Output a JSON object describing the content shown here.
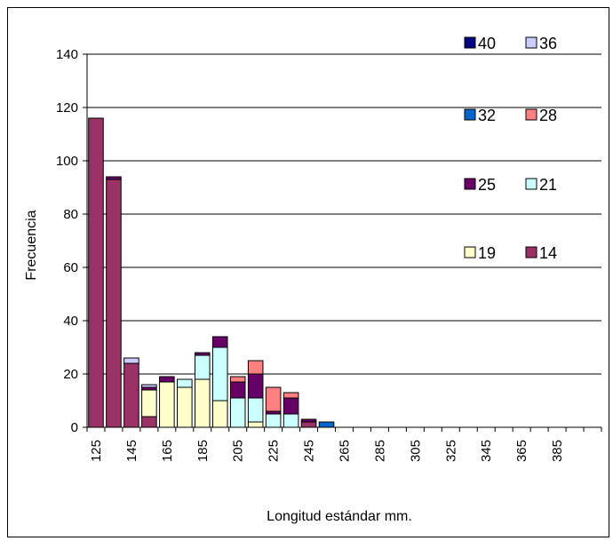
{
  "chart_data": {
    "type": "bar",
    "stacked": true,
    "title": "",
    "xlabel": "Longitud estándar mm.",
    "ylabel": "Frecuencia",
    "ylim": [
      0,
      140
    ],
    "yticks": [
      "0",
      "20",
      "40",
      "60",
      "80",
      "100",
      "120",
      "140"
    ],
    "ytick_values": [
      0,
      20,
      40,
      60,
      80,
      100,
      120,
      140
    ],
    "grid": true,
    "legend_position": "top-right",
    "x_tick_labels": [
      "125",
      "145",
      "165",
      "185",
      "205",
      "225",
      "245",
      "265",
      "285",
      "305",
      "325",
      "345",
      "365",
      "385"
    ],
    "categories": [
      "125",
      "135",
      "145",
      "155",
      "165",
      "175",
      "185",
      "195",
      "205",
      "215",
      "225",
      "235",
      "245",
      "255",
      "265",
      "275",
      "285",
      "295",
      "305",
      "315",
      "325",
      "335",
      "345",
      "355",
      "365",
      "375",
      "385",
      "395"
    ],
    "series": [
      {
        "name": "14",
        "color": "#993366",
        "values": [
          116,
          93,
          24,
          4,
          0,
          0,
          0,
          0,
          0,
          0,
          0,
          0,
          2,
          0,
          0,
          0,
          0,
          0,
          0,
          0,
          0,
          0,
          0,
          0,
          0,
          0,
          0,
          0
        ]
      },
      {
        "name": "19",
        "color": "#FFFFCC",
        "values": [
          0,
          0,
          0,
          10,
          17,
          15,
          18,
          10,
          0,
          2,
          0,
          0,
          0,
          0,
          0,
          0,
          0,
          0,
          0,
          0,
          0,
          0,
          0,
          0,
          0,
          0,
          0,
          0
        ]
      },
      {
        "name": "21",
        "color": "#CCFFFF",
        "values": [
          0,
          0,
          0,
          0,
          0,
          3,
          9,
          20,
          11,
          9,
          5,
          5,
          0,
          0,
          0,
          0,
          0,
          0,
          0,
          0,
          0,
          0,
          0,
          0,
          0,
          0,
          0,
          0
        ]
      },
      {
        "name": "25",
        "color": "#660066",
        "values": [
          0,
          1,
          0,
          1,
          2,
          0,
          1,
          4,
          6,
          9,
          1,
          6,
          1,
          0,
          0,
          0,
          0,
          0,
          0,
          0,
          0,
          0,
          0,
          0,
          0,
          0,
          0,
          0
        ]
      },
      {
        "name": "28",
        "color": "#FF8080",
        "values": [
          0,
          0,
          0,
          0,
          0,
          0,
          0,
          0,
          2,
          5,
          9,
          2,
          0,
          0,
          0,
          0,
          0,
          0,
          0,
          0,
          0,
          0,
          0,
          0,
          0,
          0,
          0,
          0
        ]
      },
      {
        "name": "32",
        "color": "#0066CC",
        "values": [
          0,
          0,
          0,
          0,
          0,
          0,
          0,
          0,
          0,
          0,
          0,
          0,
          0,
          2,
          0,
          0,
          0,
          0,
          0,
          0,
          0,
          0,
          0,
          0,
          0,
          0,
          0,
          0
        ]
      },
      {
        "name": "36",
        "color": "#CCCCFF",
        "values": [
          0,
          0,
          2,
          1,
          0,
          0,
          0,
          0,
          0,
          0,
          0,
          0,
          0,
          0,
          0,
          0,
          0,
          0,
          0,
          0,
          0,
          0,
          0,
          0,
          0,
          0,
          0,
          0
        ]
      },
      {
        "name": "40",
        "color": "#000080",
        "values": [
          0,
          0,
          0,
          0,
          0,
          0,
          0,
          0,
          0,
          0,
          0,
          0,
          0,
          0,
          0,
          0,
          0,
          0,
          0,
          0,
          0,
          0,
          0,
          0,
          0,
          0,
          0,
          0
        ]
      }
    ],
    "legend": [
      {
        "name": "40",
        "series": "40"
      },
      {
        "name": "36",
        "series": "36"
      },
      {
        "name": "32",
        "series": "32"
      },
      {
        "name": "28",
        "series": "28"
      },
      {
        "name": "25",
        "series": "25"
      },
      {
        "name": "21",
        "series": "21"
      },
      {
        "name": "19",
        "series": "19"
      },
      {
        "name": "14",
        "series": "14"
      }
    ]
  }
}
